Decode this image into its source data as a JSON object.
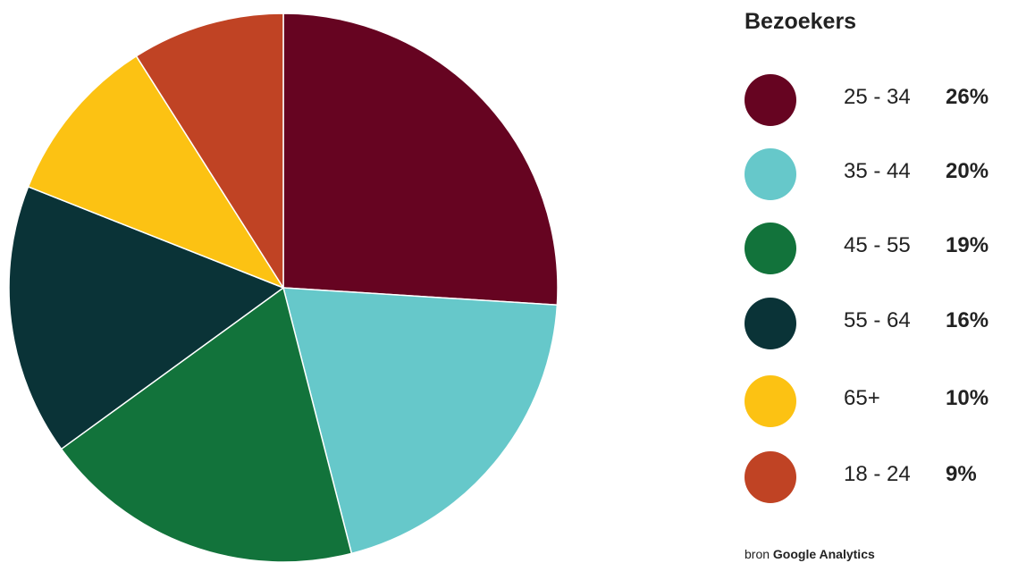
{
  "chart_data": {
    "type": "pie",
    "title": "Bezoekers",
    "slices": [
      {
        "label": "25 - 34",
        "value": 26,
        "display": "26%",
        "color": "#660421"
      },
      {
        "label": "35 - 44",
        "value": 20,
        "display": "20%",
        "color": "#66c8ca"
      },
      {
        "label": "45 - 55",
        "value": 19,
        "display": "19%",
        "color": "#12733b"
      },
      {
        "label": "55 - 64",
        "value": 16,
        "display": "16%",
        "color": "#0a3337"
      },
      {
        "label": "65+",
        "value": 10,
        "display": "10%",
        "color": "#fcc213"
      },
      {
        "label": "18 - 24",
        "value": 9,
        "display": "9%",
        "color": "#c04324"
      }
    ],
    "legend_position": "right",
    "start_angle": "top",
    "direction": "clockwise"
  },
  "source": {
    "prefix": "bron",
    "name": "Google Analytics"
  }
}
